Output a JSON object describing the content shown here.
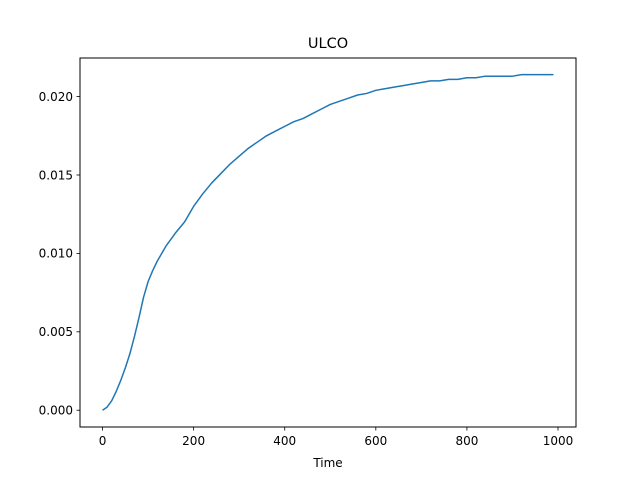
{
  "chart_data": {
    "type": "line",
    "title": "ULCO",
    "xlabel": "Time",
    "ylabel": "",
    "xlim": [
      -49.5,
      1039.5
    ],
    "ylim": [
      -0.00107,
      0.02246
    ],
    "grid": false,
    "legend": "none",
    "x_ticks": [
      0,
      200,
      400,
      600,
      800,
      1000
    ],
    "y_ticks": [
      0.0,
      0.005,
      0.01,
      0.015,
      0.02
    ],
    "x_tick_labels": [
      "0",
      "200",
      "400",
      "600",
      "800",
      "1000"
    ],
    "y_tick_labels": [
      "0.000",
      "0.005",
      "0.010",
      "0.015",
      "0.020"
    ],
    "series": [
      {
        "color": "#1f77b4",
        "x": [
          0,
          10,
          20,
          30,
          40,
          50,
          60,
          70,
          80,
          90,
          100,
          110,
          120,
          130,
          140,
          150,
          160,
          180,
          200,
          220,
          240,
          260,
          280,
          300,
          320,
          340,
          360,
          380,
          400,
          420,
          440,
          460,
          480,
          500,
          520,
          540,
          560,
          580,
          600,
          620,
          640,
          660,
          680,
          700,
          720,
          740,
          760,
          780,
          800,
          820,
          840,
          860,
          880,
          900,
          920,
          940,
          960,
          990
        ],
        "y": [
          0.0,
          0.0002,
          0.0006,
          0.0012,
          0.0019,
          0.0027,
          0.0036,
          0.0047,
          0.0059,
          0.0072,
          0.0082,
          0.0089,
          0.0095,
          0.01,
          0.0105,
          0.0109,
          0.0113,
          0.012,
          0.013,
          0.0138,
          0.0145,
          0.0151,
          0.0157,
          0.0162,
          0.0167,
          0.0171,
          0.0175,
          0.0178,
          0.0181,
          0.0184,
          0.0186,
          0.0189,
          0.0192,
          0.0195,
          0.0197,
          0.0199,
          0.0201,
          0.0202,
          0.0204,
          0.0205,
          0.0206,
          0.0207,
          0.0208,
          0.0209,
          0.021,
          0.021,
          0.0211,
          0.0211,
          0.0212,
          0.0212,
          0.0213,
          0.0213,
          0.0213,
          0.0213,
          0.0214,
          0.0214,
          0.0214,
          0.0214
        ]
      }
    ]
  }
}
